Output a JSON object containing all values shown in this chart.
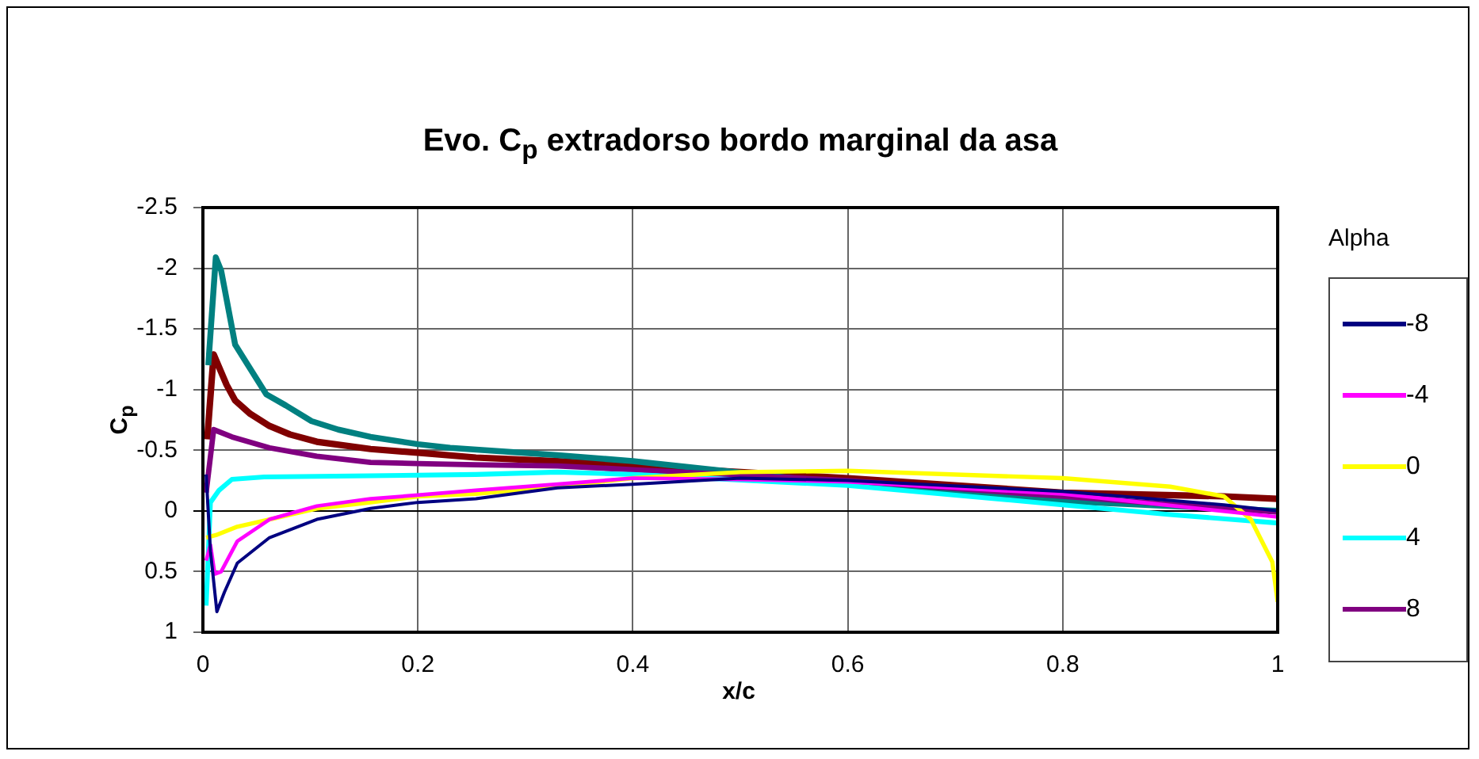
{
  "chart_data": {
    "type": "line",
    "title": "Evo. C$_{p}$ extradorso bordo marginal da asa",
    "xlabel": "x/c",
    "ylabel": "C$_{p}$",
    "legend_title": "Alpha",
    "legend": "right",
    "grid": true,
    "marker": "none",
    "line_style": "solid",
    "xlim": [
      0,
      1
    ],
    "xticks": [
      0,
      0.2,
      0.4,
      0.6,
      0.8,
      1
    ],
    "ylim": [
      1,
      -2.5
    ],
    "yticks": [
      -2.5,
      -2,
      -1.5,
      -1,
      -0.5,
      0,
      0.5,
      1
    ],
    "series": [
      {
        "name": "-8",
        "color": "#000080",
        "x": [
          0.003,
          0.007,
          0.013,
          0.02,
          0.032,
          0.062,
          0.106,
          0.156,
          0.2,
          0.254,
          0.33,
          0.4,
          0.5,
          0.6,
          0.8,
          0.95,
          1
        ],
        "values": [
          -0.3,
          0.33,
          0.83,
          0.67,
          0.43,
          0.22,
          0.07,
          -0.02,
          -0.07,
          -0.1,
          -0.19,
          -0.22,
          -0.27,
          -0.25,
          -0.16,
          -0.05,
          0
        ]
      },
      {
        "name": "-4",
        "color": "#ff00ff",
        "x": [
          0.003,
          0.007,
          0.011,
          0.017,
          0.032,
          0.062,
          0.106,
          0.156,
          0.2,
          0.254,
          0.33,
          0.4,
          0.5,
          0.6,
          0.8,
          1
        ],
        "values": [
          0.41,
          0.28,
          0.52,
          0.5,
          0.25,
          0.07,
          -0.04,
          -0.1,
          -0.13,
          -0.17,
          -0.22,
          -0.27,
          -0.26,
          -0.24,
          -0.14,
          0.05
        ]
      },
      {
        "name": "0",
        "color": "#ffff00",
        "x": [
          0.003,
          0.012,
          0.032,
          0.062,
          0.106,
          0.156,
          0.2,
          0.254,
          0.33,
          0.4,
          0.5,
          0.6,
          0.8,
          0.9,
          0.95,
          0.975,
          0.995,
          1
        ],
        "values": [
          0.22,
          0.2,
          0.13,
          0.07,
          -0.02,
          -0.07,
          -0.12,
          -0.14,
          -0.2,
          -0.27,
          -0.32,
          -0.33,
          -0.27,
          -0.2,
          -0.12,
          0.07,
          0.42,
          0.75
        ]
      },
      {
        "name": "4",
        "color": "#00ffff",
        "x": [
          0.003,
          0.007,
          0.015,
          0.027,
          0.057,
          0.156,
          0.254,
          0.33,
          0.4,
          0.6,
          0.8,
          0.9,
          1
        ],
        "values": [
          0.78,
          -0.07,
          -0.17,
          -0.26,
          -0.28,
          -0.29,
          -0.3,
          -0.32,
          -0.3,
          -0.21,
          -0.05,
          0.03,
          0.1
        ]
      },
      {
        "name": "8",
        "color": "#800080",
        "x": [
          0.003,
          0.01,
          0.027,
          0.062,
          0.106,
          0.156,
          0.2,
          0.254,
          0.33,
          0.4,
          0.6,
          0.8,
          1
        ],
        "values": [
          -0.15,
          -0.67,
          -0.61,
          -0.52,
          -0.45,
          -0.4,
          -0.39,
          -0.38,
          -0.37,
          -0.34,
          -0.25,
          -0.12,
          0.01
        ]
      },
      {
        "color": "#008080",
        "x": [
          0.005,
          0.012,
          0.017,
          0.03,
          0.042,
          0.059,
          0.077,
          0.101,
          0.126,
          0.156,
          0.2,
          0.23,
          0.33,
          0.4,
          0.6,
          0.8,
          1
        ],
        "values": [
          -1.2,
          -2.09,
          -1.98,
          -1.37,
          -1.2,
          -0.96,
          -0.87,
          -0.74,
          -0.67,
          -0.61,
          -0.55,
          -0.52,
          -0.46,
          -0.41,
          -0.22,
          -0.08,
          0
        ]
      },
      {
        "color": "#800000",
        "x": [
          0.004,
          0.01,
          0.022,
          0.03,
          0.044,
          0.062,
          0.081,
          0.106,
          0.156,
          0.2,
          0.254,
          0.33,
          0.4,
          0.6,
          0.8,
          0.95,
          1
        ],
        "values": [
          -0.59,
          -1.29,
          -1.04,
          -0.91,
          -0.8,
          -0.7,
          -0.63,
          -0.57,
          -0.51,
          -0.48,
          -0.44,
          -0.41,
          -0.37,
          -0.27,
          -0.15,
          -0.12,
          -0.1
        ]
      }
    ]
  }
}
